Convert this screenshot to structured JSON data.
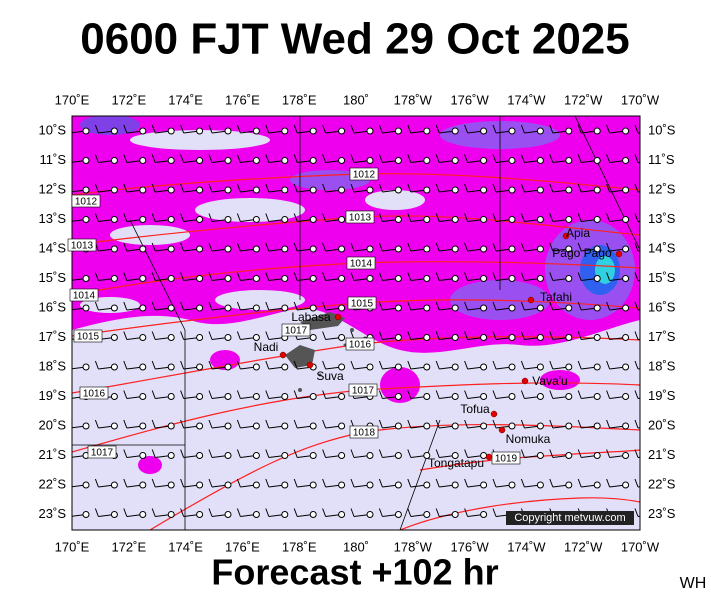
{
  "title": "0600 FJT Wed 29 Oct 2025",
  "longitudes": [
    "170˚E",
    "172˚E",
    "174˚E",
    "176˚E",
    "178˚E",
    "180˚",
    "178˚W",
    "176˚W",
    "174˚W",
    "172˚W",
    "170˚W"
  ],
  "latitudes": [
    "10˚S",
    "11˚S",
    "12˚S",
    "13˚S",
    "14˚S",
    "15˚S",
    "16˚S",
    "17˚S",
    "18˚S",
    "19˚S",
    "20˚S",
    "21˚S",
    "22˚S",
    "23˚S"
  ],
  "places": [
    "Labasa",
    "Nadi",
    "Suva",
    "Apia",
    "Pago Pago",
    "Tafahi",
    "Vava'u",
    "Tofua",
    "Nomuka",
    "Tongatapu"
  ],
  "isobar_labels": [
    "1012",
    "1012",
    "1013",
    "1013",
    "1014",
    "1014",
    "1015",
    "1015",
    "1016",
    "1016",
    "1017",
    "1017",
    "1017",
    "1018",
    "1019"
  ],
  "copyright": "Copyright metvuw.com",
  "footer": "Forecast +102 hr",
  "initials": "WH"
}
